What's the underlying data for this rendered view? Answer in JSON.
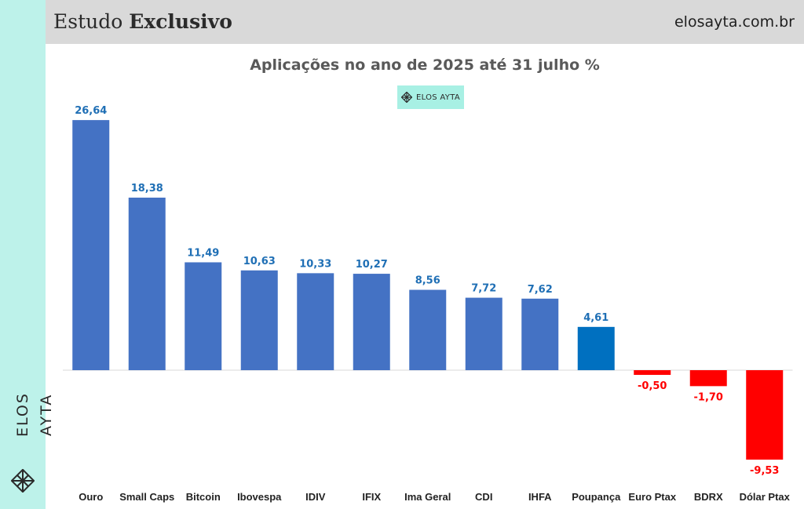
{
  "header": {
    "title_regular": "Estudo",
    "title_bold": "Exclusivo",
    "site": "elosayta.com.br"
  },
  "badge": {
    "text": "ELOS AYTA",
    "icon": "lattice-logo-icon"
  },
  "side": {
    "brand_text": "ELOS AYTA",
    "icon": "lattice-logo-icon"
  },
  "colors": {
    "positive": "#4472c4",
    "highlight": "#0070c0",
    "negative": "#ff0000",
    "positive_label": "#1f6fb5",
    "negative_label": "#ff0000",
    "side_band": "#bdf2ea",
    "header_bg": "#d9d9d9"
  },
  "chart_data": {
    "type": "bar",
    "title": "Aplicações no ano de 2025 até 31 julho %",
    "categories": [
      "Ouro",
      "Small Caps",
      "Bitcoin",
      "Ibovespa",
      "IDIV",
      "IFIX",
      "Ima Geral",
      "CDI",
      "IHFA",
      "Poupança",
      "Euro Ptax",
      "BDRX",
      "Dólar Ptax"
    ],
    "values": [
      26.64,
      18.38,
      11.49,
      10.63,
      10.33,
      10.27,
      8.56,
      7.72,
      7.62,
      4.61,
      -0.5,
      -1.7,
      -9.53
    ],
    "value_labels": [
      "26,64",
      "18,38",
      "11,49",
      "10,63",
      "10,33",
      "10,27",
      "8,56",
      "7,72",
      "7,62",
      "4,61",
      "-0,50",
      "-1,70",
      "-9,53"
    ],
    "highlighted_category": "Poupança",
    "ylim": [
      -9.53,
      26.64
    ],
    "grid": false,
    "legend": "none",
    "xlabel": "",
    "ylabel": ""
  }
}
